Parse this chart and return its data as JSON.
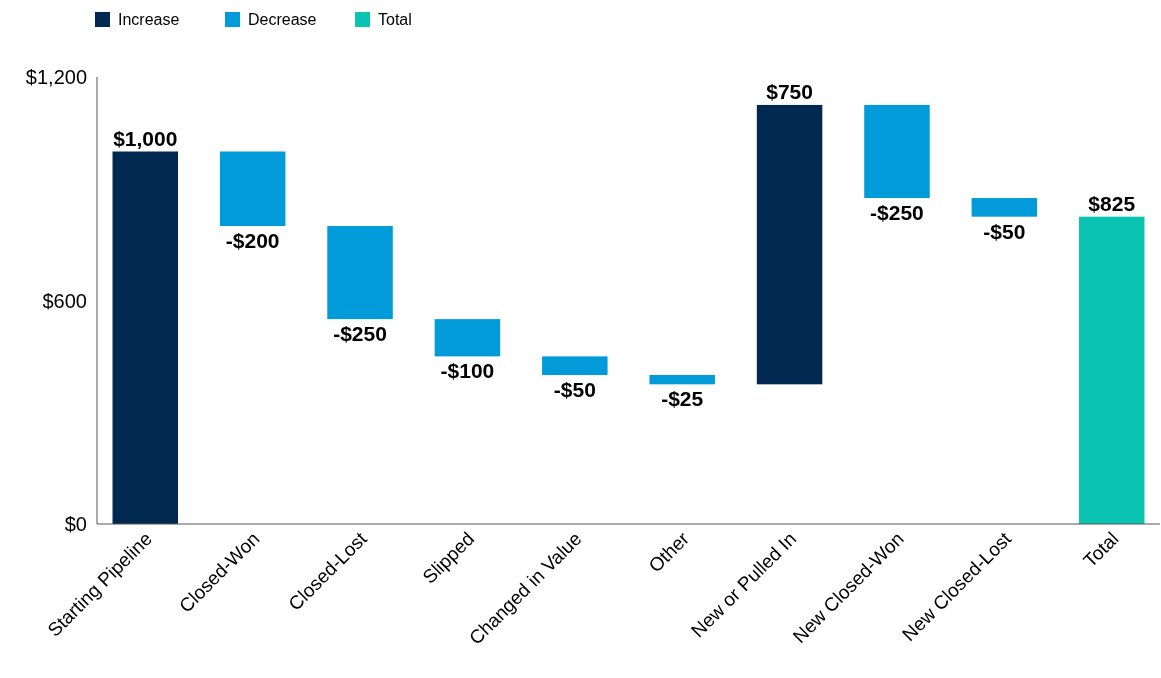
{
  "chart_data": {
    "type": "bar",
    "categories": [
      "Starting Pipeline",
      "Closed-Won",
      "Closed-Lost",
      "Slipped",
      "Changed in Value",
      "Other",
      "New or Pulled In",
      "New Closed-Won",
      "New Closed-Lost",
      "Total"
    ],
    "series": [
      {
        "name": "Increase",
        "color": "#002851",
        "values": [
          1000,
          null,
          null,
          null,
          null,
          null,
          750,
          null,
          null,
          null
        ],
        "base": [
          0,
          null,
          null,
          null,
          null,
          null,
          375,
          null,
          null,
          null
        ],
        "value_labels": [
          "$1,000",
          null,
          null,
          null,
          null,
          null,
          "$750",
          null,
          null,
          null
        ]
      },
      {
        "name": "Decrease",
        "color": "#009bd8",
        "values": [
          null,
          -200,
          -250,
          -100,
          -50,
          -25,
          null,
          -250,
          -50,
          null
        ],
        "base": [
          null,
          1000,
          800,
          550,
          450,
          400,
          null,
          1125,
          875,
          null
        ],
        "value_labels": [
          null,
          "-$200",
          "-$250",
          "-$100",
          "-$50",
          "-$25",
          null,
          "-$250",
          "-$50",
          null
        ]
      },
      {
        "name": "Total",
        "color": "#0bc3b1",
        "values": [
          null,
          null,
          null,
          null,
          null,
          null,
          null,
          null,
          null,
          825
        ],
        "base": [
          null,
          null,
          null,
          null,
          null,
          null,
          null,
          null,
          null,
          0
        ],
        "value_labels": [
          null,
          null,
          null,
          null,
          null,
          null,
          null,
          null,
          null,
          "$825"
        ]
      }
    ],
    "ylim": [
      0,
      1200
    ],
    "yticks": [
      {
        "value": 0,
        "label": "$0"
      },
      {
        "value": 600,
        "label": "$600"
      },
      {
        "value": 1200,
        "label": "$1,200"
      }
    ],
    "legend": "top left",
    "grid": false
  }
}
